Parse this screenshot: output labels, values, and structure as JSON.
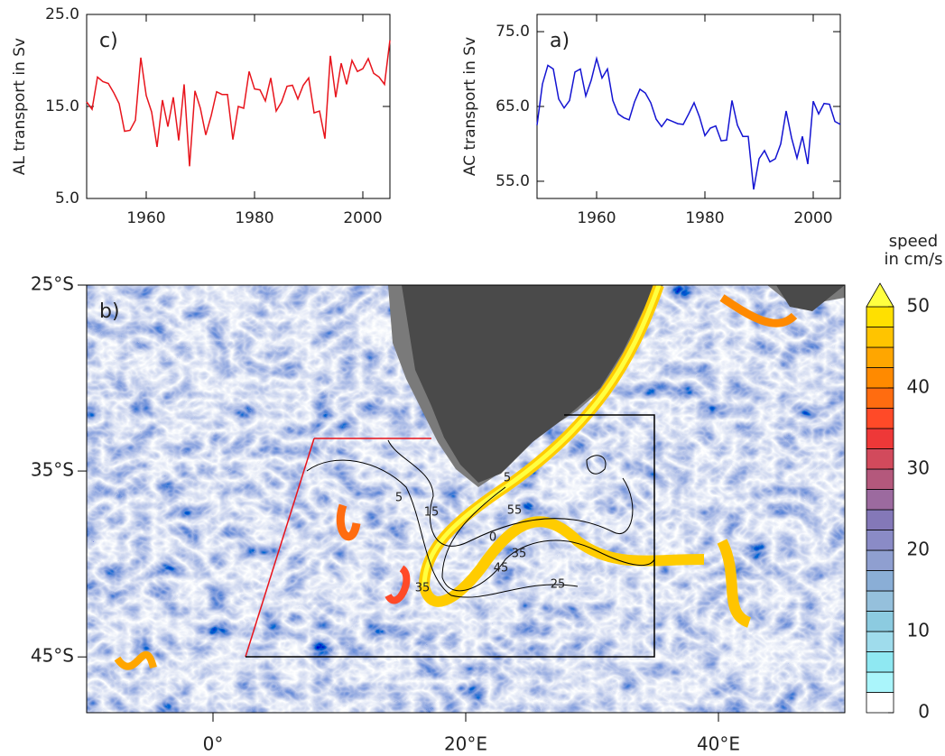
{
  "chart_data": [
    {
      "type": "line",
      "annotation": "c)",
      "ylabel": "AL transport in Sv",
      "xlim": [
        1949,
        2005
      ],
      "xticks": [
        1960,
        1980,
        2000
      ],
      "ylim": [
        5,
        25
      ],
      "yticks": [
        {
          "value": 5,
          "label": "5.0"
        },
        {
          "value": 15,
          "label": "15.0"
        },
        {
          "value": 25,
          "label": "25.0"
        }
      ],
      "x": [
        1949,
        1950,
        1951,
        1952,
        1953,
        1954,
        1955,
        1956,
        1957,
        1958,
        1959,
        1960,
        1961,
        1962,
        1963,
        1964,
        1965,
        1966,
        1967,
        1968,
        1969,
        1970,
        1971,
        1972,
        1973,
        1974,
        1975,
        1976,
        1977,
        1978,
        1979,
        1980,
        1981,
        1982,
        1983,
        1984,
        1985,
        1986,
        1987,
        1988,
        1989,
        1990,
        1991,
        1992,
        1993,
        1994,
        1995,
        1996,
        1997,
        1998,
        1999,
        2000,
        2001,
        2002,
        2003,
        2004,
        2005
      ],
      "series": [
        {
          "color": "#e8141c",
          "values": [
            15.5,
            14.7,
            18.2,
            17.7,
            17.5,
            16.5,
            15.3,
            12.3,
            12.4,
            13.5,
            20.3,
            16.2,
            14.4,
            10.6,
            15.7,
            12.8,
            16.0,
            11.3,
            17.4,
            8.5,
            16.7,
            14.8,
            11.9,
            14.0,
            16.6,
            16.3,
            16.3,
            11.4,
            15.0,
            14.8,
            18.8,
            16.9,
            16.8,
            15.6,
            18.1,
            14.5,
            15.5,
            17.2,
            17.3,
            15.8,
            17.3,
            18.1,
            14.3,
            14.5,
            11.5,
            20.5,
            16.0,
            19.7,
            17.4,
            20.0,
            18.8,
            19.1,
            20.2,
            18.6,
            18.2,
            17.4,
            22.2
          ]
        }
      ]
    },
    {
      "type": "line",
      "annotation": "a)",
      "ylabel": "AC transport in Sv",
      "xlim": [
        1949,
        2005
      ],
      "xticks": [
        1960,
        1980,
        2000
      ],
      "ylim": [
        52.7,
        77.3
      ],
      "yticks": [
        {
          "value": 55,
          "label": "55.0"
        },
        {
          "value": 65,
          "label": "65.0"
        },
        {
          "value": 75,
          "label": "75.0"
        }
      ],
      "x": [
        1949,
        1950,
        1951,
        1952,
        1953,
        1954,
        1955,
        1956,
        1957,
        1958,
        1959,
        1960,
        1961,
        1962,
        1963,
        1964,
        1965,
        1966,
        1967,
        1968,
        1969,
        1970,
        1971,
        1972,
        1973,
        1974,
        1975,
        1976,
        1977,
        1978,
        1979,
        1980,
        1981,
        1982,
        1983,
        1984,
        1985,
        1986,
        1987,
        1988,
        1989,
        1990,
        1991,
        1992,
        1993,
        1994,
        1995,
        1996,
        1997,
        1998,
        1999,
        2000,
        2001,
        2002,
        2003,
        2004,
        2005
      ],
      "series": [
        {
          "color": "#1414d2",
          "values": [
            62.5,
            68.0,
            70.5,
            70.0,
            66.0,
            64.8,
            65.8,
            69.6,
            70.0,
            66.4,
            68.5,
            71.4,
            68.8,
            70.0,
            65.8,
            64.0,
            63.5,
            63.2,
            65.6,
            67.3,
            66.8,
            65.5,
            63.3,
            62.3,
            63.3,
            63.0,
            62.7,
            62.6,
            64.0,
            65.5,
            63.6,
            61.1,
            62.1,
            62.4,
            60.4,
            60.5,
            65.8,
            62.5,
            61.0,
            61.0,
            53.9,
            58.0,
            59.1,
            57.6,
            58.0,
            60.0,
            64.4,
            60.8,
            58.1,
            61.0,
            57.3,
            65.7,
            64.0,
            65.4,
            65.3,
            63.0,
            62.6
          ]
        }
      ]
    },
    {
      "type": "map",
      "annotation": "b)",
      "xlim": [
        -10,
        50
      ],
      "xticks": [
        {
          "value": 0,
          "label": "0°"
        },
        {
          "value": 20,
          "label": "20°E"
        },
        {
          "value": 40,
          "label": "40°E"
        }
      ],
      "ylim": [
        -48,
        -25
      ],
      "yticks": [
        {
          "value": -25,
          "label": "25°S"
        },
        {
          "value": -35,
          "label": "35°S"
        },
        {
          "value": -45,
          "label": "45°S"
        }
      ],
      "contour_labels": [
        "5",
        "15",
        "5",
        "55",
        "0",
        "45",
        "35",
        "35",
        "25"
      ],
      "colorbar": {
        "title": [
          "speed",
          "in cm/s"
        ],
        "lim": [
          0,
          50
        ],
        "ticks": [
          0,
          10,
          20,
          30,
          40,
          50
        ],
        "colors": [
          "#ffffff",
          "#aaf5fb",
          "#8fe8f2",
          "#9fdcec",
          "#8ccbe0",
          "#95c0dc",
          "#8aaed6",
          "#8f9fd0",
          "#8a8bc6",
          "#8478b8",
          "#9c6a9f",
          "#b4587c",
          "#d24a5c",
          "#ee3838",
          "#ff4a28",
          "#ff6c10",
          "#ff8a00",
          "#ffa600",
          "#ffc400",
          "#ffe000"
        ],
        "extend_color": "#ffff40"
      }
    }
  ]
}
